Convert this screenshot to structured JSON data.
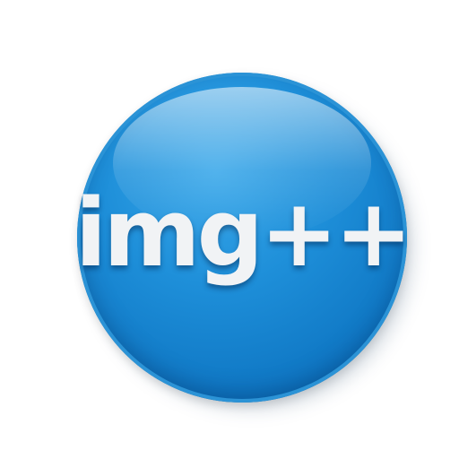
{
  "logo": {
    "text": "img++",
    "colors": {
      "badge": "#1e8fd9",
      "badge_dark": "#0a63a8",
      "text": "#f1f3f5",
      "background": "#ffffff"
    }
  }
}
